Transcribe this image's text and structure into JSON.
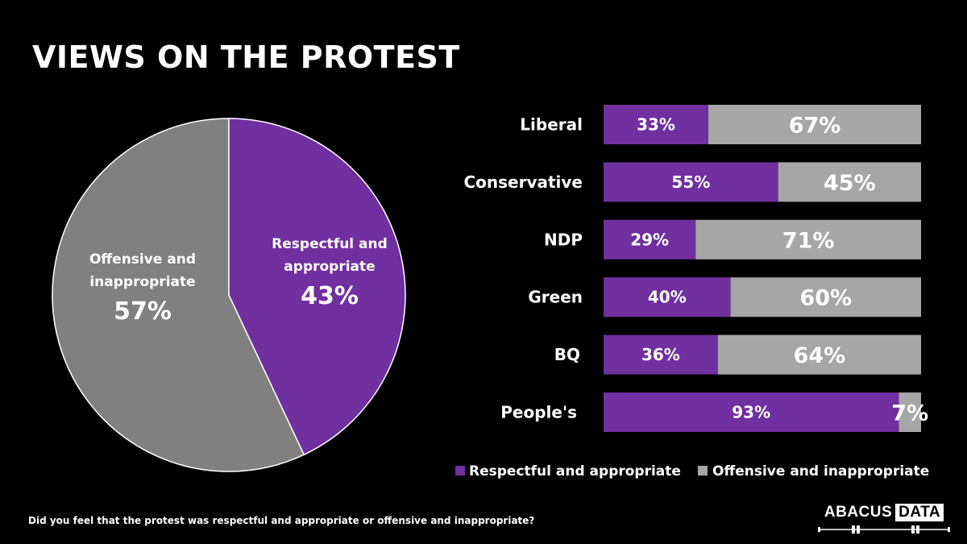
{
  "title": "VIEWS ON THE PROTEST",
  "question": "Did you feel that the protest was respectful and appropriate or offensive and inappropriate?",
  "logo": {
    "part1": "ABACUS",
    "part2": "DATA"
  },
  "colors": {
    "respectful": "#7030A0",
    "offensive": "#A6A6A6",
    "pie_offensive": "#808080",
    "background": "#000000"
  },
  "legend": {
    "respectful": "Respectful and appropriate",
    "offensive": "Offensive and inappropriate"
  },
  "pie": {
    "respectful": {
      "line1": "Respectful and",
      "line2": "appropriate",
      "pct_label": "43%"
    },
    "offensive": {
      "line1": "Offensive and",
      "line2": "inappropriate",
      "pct_label": "57%"
    }
  },
  "chart_data": [
    {
      "type": "pie",
      "title": "VIEWS ON THE PROTEST",
      "slices": [
        {
          "label": "Respectful and appropriate",
          "value": 43
        },
        {
          "label": "Offensive and inappropriate",
          "value": 57
        }
      ]
    },
    {
      "type": "bar",
      "orientation": "horizontal",
      "stacked": true,
      "categories": [
        "Liberal",
        "Conservative",
        "NDP",
        "Green",
        "BQ",
        "People's"
      ],
      "series": [
        {
          "name": "Respectful and appropriate",
          "values": [
            33,
            55,
            29,
            40,
            36,
            93
          ],
          "labels": [
            "33%",
            "55%",
            "29%",
            "40%",
            "36%",
            "93%"
          ]
        },
        {
          "name": "Offensive and inappropriate",
          "values": [
            67,
            45,
            71,
            60,
            64,
            7
          ],
          "labels": [
            "67%",
            "45%",
            "71%",
            "60%",
            "64%",
            "7%"
          ]
        }
      ],
      "xlim": [
        0,
        100
      ],
      "legend_position": "bottom"
    }
  ]
}
